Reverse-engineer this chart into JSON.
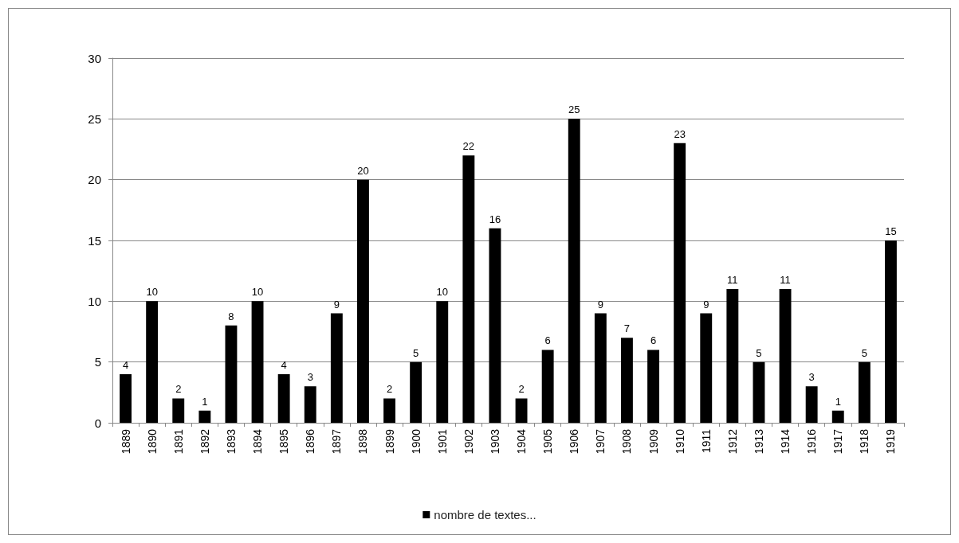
{
  "chart_data": {
    "type": "bar",
    "categories": [
      "1889",
      "1890",
      "1891",
      "1892",
      "1893",
      "1894",
      "1895",
      "1896",
      "1897",
      "1898",
      "1899",
      "1900",
      "1901",
      "1902",
      "1903",
      "1904",
      "1905",
      "1906",
      "1907",
      "1908",
      "1909",
      "1910",
      "1911",
      "1912",
      "1913",
      "1914",
      "1916",
      "1917",
      "1918",
      "1919"
    ],
    "series": [
      {
        "name": "nombre de textes...",
        "color": "#000000",
        "values": [
          4,
          10,
          2,
          1,
          8,
          10,
          4,
          3,
          9,
          20,
          2,
          5,
          10,
          22,
          16,
          2,
          6,
          25,
          9,
          7,
          6,
          23,
          9,
          11,
          5,
          11,
          3,
          1,
          5,
          15
        ]
      }
    ],
    "ylim": [
      0,
      30
    ],
    "yticks": [
      0,
      5,
      10,
      15,
      20,
      25,
      30
    ],
    "grid": "y",
    "legend": "bottom",
    "data_labels": true
  }
}
